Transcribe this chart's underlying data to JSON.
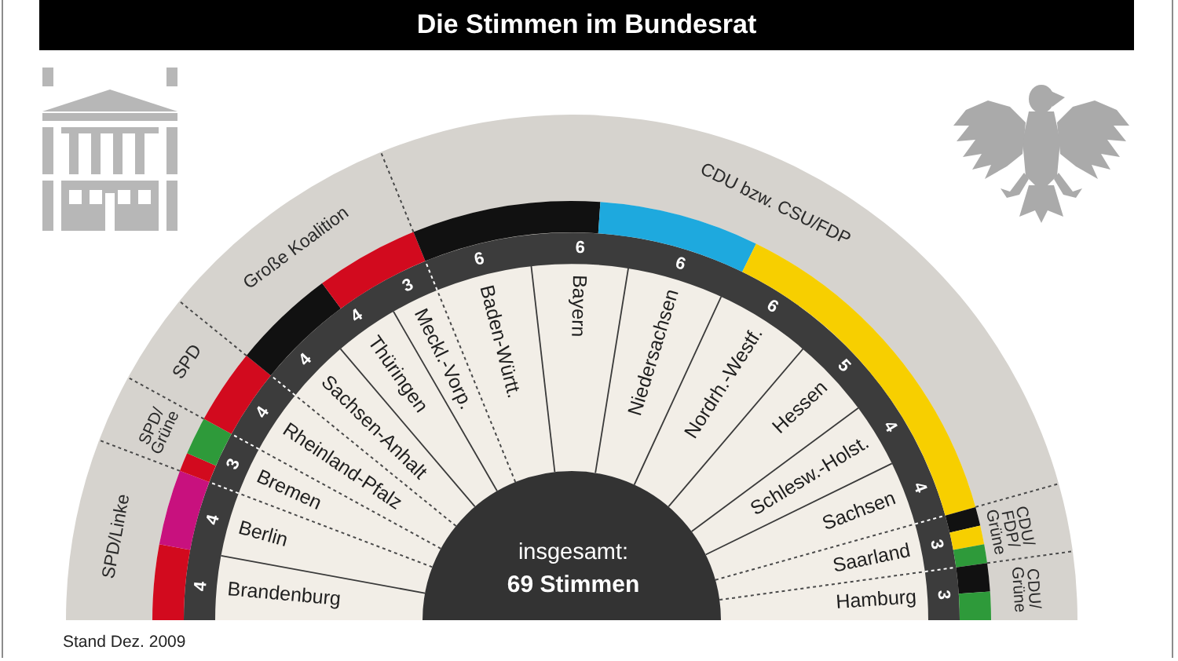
{
  "chart_data": [
    {
      "type": "donut",
      "title": "Die Stimmen im Bundesrat",
      "categories": [
        "Brandenburg",
        "Berlin",
        "Bremen",
        "Rheinland-Pfalz",
        "Sachsen-Anhalt",
        "Thüringen",
        "Meckl.-Vorp.",
        "Baden-Württ.",
        "Bayern",
        "Niedersachsen",
        "Nordrh.-Westf.",
        "Hessen",
        "Schlesw.-Holst.",
        "Sachsen",
        "Saarland",
        "Hamburg"
      ],
      "values": [
        4,
        4,
        3,
        4,
        4,
        4,
        3,
        6,
        6,
        6,
        6,
        5,
        4,
        4,
        3,
        3
      ],
      "color": "#f2eee7",
      "data_labels": true,
      "annotations": [
        "insgesamt:",
        "69 Stimmen",
        "Stand Dez. 2009"
      ]
    },
    {
      "type": "donut",
      "categories": [
        "SPD/Linke",
        "SPD/Grüne",
        "SPD",
        "Große Koalition",
        "CDU bzw. CSU/FDP",
        "CDU/FDP/Grüne",
        "CDU/Grüne"
      ],
      "values": [
        11.59,
        4.35,
        5.8,
        15.94,
        53.62,
        4.35,
        4.35
      ],
      "color": "#d6d3ce"
    }
  ]
}
